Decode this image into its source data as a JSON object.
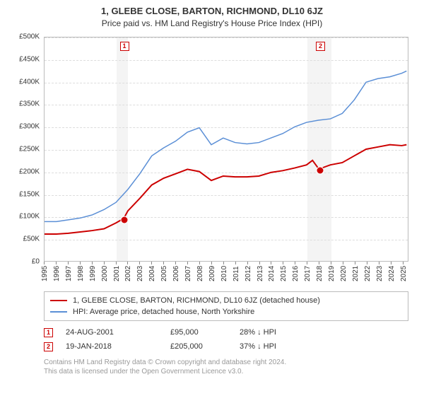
{
  "title": "1, GLEBE CLOSE, BARTON, RICHMOND, DL10 6JZ",
  "subtitle": "Price paid vs. HM Land Registry's House Price Index (HPI)",
  "chart": {
    "type": "line",
    "background_color": "#ffffff",
    "grid_color": "#dddddd",
    "band_color": "#f4f4f4",
    "axis_color": "#bbbbbb",
    "label_fontsize": 10,
    "ylim": [
      0,
      500000
    ],
    "ytick_step": 50000,
    "yticks": [
      "£0",
      "£50K",
      "£100K",
      "£150K",
      "£200K",
      "£250K",
      "£300K",
      "£350K",
      "£400K",
      "£450K",
      "£500K"
    ],
    "xlim": [
      1995,
      2025.5
    ],
    "xticks": [
      1995,
      1996,
      1997,
      1998,
      1999,
      2000,
      2001,
      2002,
      2003,
      2004,
      2005,
      2006,
      2007,
      2008,
      2009,
      2010,
      2011,
      2012,
      2013,
      2014,
      2015,
      2016,
      2017,
      2018,
      2019,
      2020,
      2021,
      2022,
      2023,
      2024,
      2025
    ],
    "band_years": [
      [
        2001,
        2002
      ],
      [
        2017,
        2019
      ]
    ],
    "series": [
      {
        "name": "property",
        "label": "1, GLEBE CLOSE, BARTON, RICHMOND, DL10 6JZ (detached house)",
        "color": "#cc0000",
        "line_width": 2,
        "points": [
          [
            1995,
            60000
          ],
          [
            1996,
            60000
          ],
          [
            1997,
            62000
          ],
          [
            1998,
            65000
          ],
          [
            1999,
            68000
          ],
          [
            2000,
            72000
          ],
          [
            2001,
            85000
          ],
          [
            2001.65,
            95000
          ],
          [
            2002,
            112000
          ],
          [
            2003,
            140000
          ],
          [
            2004,
            170000
          ],
          [
            2005,
            185000
          ],
          [
            2006,
            195000
          ],
          [
            2007,
            205000
          ],
          [
            2008,
            200000
          ],
          [
            2009,
            180000
          ],
          [
            2010,
            190000
          ],
          [
            2011,
            188000
          ],
          [
            2012,
            188000
          ],
          [
            2013,
            190000
          ],
          [
            2014,
            198000
          ],
          [
            2015,
            202000
          ],
          [
            2016,
            208000
          ],
          [
            2017,
            215000
          ],
          [
            2017.5,
            225000
          ],
          [
            2018.05,
            205000
          ],
          [
            2018.5,
            210000
          ],
          [
            2019,
            215000
          ],
          [
            2020,
            220000
          ],
          [
            2021,
            235000
          ],
          [
            2022,
            250000
          ],
          [
            2023,
            255000
          ],
          [
            2024,
            260000
          ],
          [
            2025,
            258000
          ],
          [
            2025.4,
            260000
          ]
        ]
      },
      {
        "name": "hpi",
        "label": "HPI: Average price, detached house, North Yorkshire",
        "color": "#5b8fd6",
        "line_width": 1.5,
        "points": [
          [
            1995,
            88000
          ],
          [
            1996,
            88000
          ],
          [
            1997,
            92000
          ],
          [
            1998,
            96000
          ],
          [
            1999,
            103000
          ],
          [
            2000,
            115000
          ],
          [
            2001,
            131000
          ],
          [
            2002,
            160000
          ],
          [
            2003,
            195000
          ],
          [
            2004,
            235000
          ],
          [
            2005,
            253000
          ],
          [
            2006,
            268000
          ],
          [
            2007,
            288000
          ],
          [
            2008,
            298000
          ],
          [
            2009,
            260000
          ],
          [
            2010,
            275000
          ],
          [
            2011,
            265000
          ],
          [
            2012,
            262000
          ],
          [
            2013,
            265000
          ],
          [
            2014,
            275000
          ],
          [
            2015,
            285000
          ],
          [
            2016,
            300000
          ],
          [
            2017,
            310000
          ],
          [
            2018,
            315000
          ],
          [
            2019,
            318000
          ],
          [
            2020,
            330000
          ],
          [
            2021,
            360000
          ],
          [
            2022,
            400000
          ],
          [
            2023,
            408000
          ],
          [
            2024,
            412000
          ],
          [
            2025,
            420000
          ],
          [
            2025.4,
            425000
          ]
        ]
      }
    ],
    "sale_markers": [
      {
        "num": "1",
        "year": 2001.65,
        "price": 95000,
        "color": "#cc0000"
      },
      {
        "num": "2",
        "year": 2018.05,
        "price": 205000,
        "color": "#cc0000"
      }
    ]
  },
  "legend": {
    "series1": {
      "label": "1, GLEBE CLOSE, BARTON, RICHMOND, DL10 6JZ (detached house)",
      "color": "#cc0000"
    },
    "series2": {
      "label": "HPI: Average price, detached house, North Yorkshire",
      "color": "#5b8fd6"
    }
  },
  "sales": [
    {
      "num": "1",
      "date": "24-AUG-2001",
      "price": "£95,000",
      "diff": "28% ↓ HPI"
    },
    {
      "num": "2",
      "date": "19-JAN-2018",
      "price": "£205,000",
      "diff": "37% ↓ HPI"
    }
  ],
  "footer": {
    "line1": "Contains HM Land Registry data © Crown copyright and database right 2024.",
    "line2": "This data is licensed under the Open Government Licence v3.0."
  }
}
